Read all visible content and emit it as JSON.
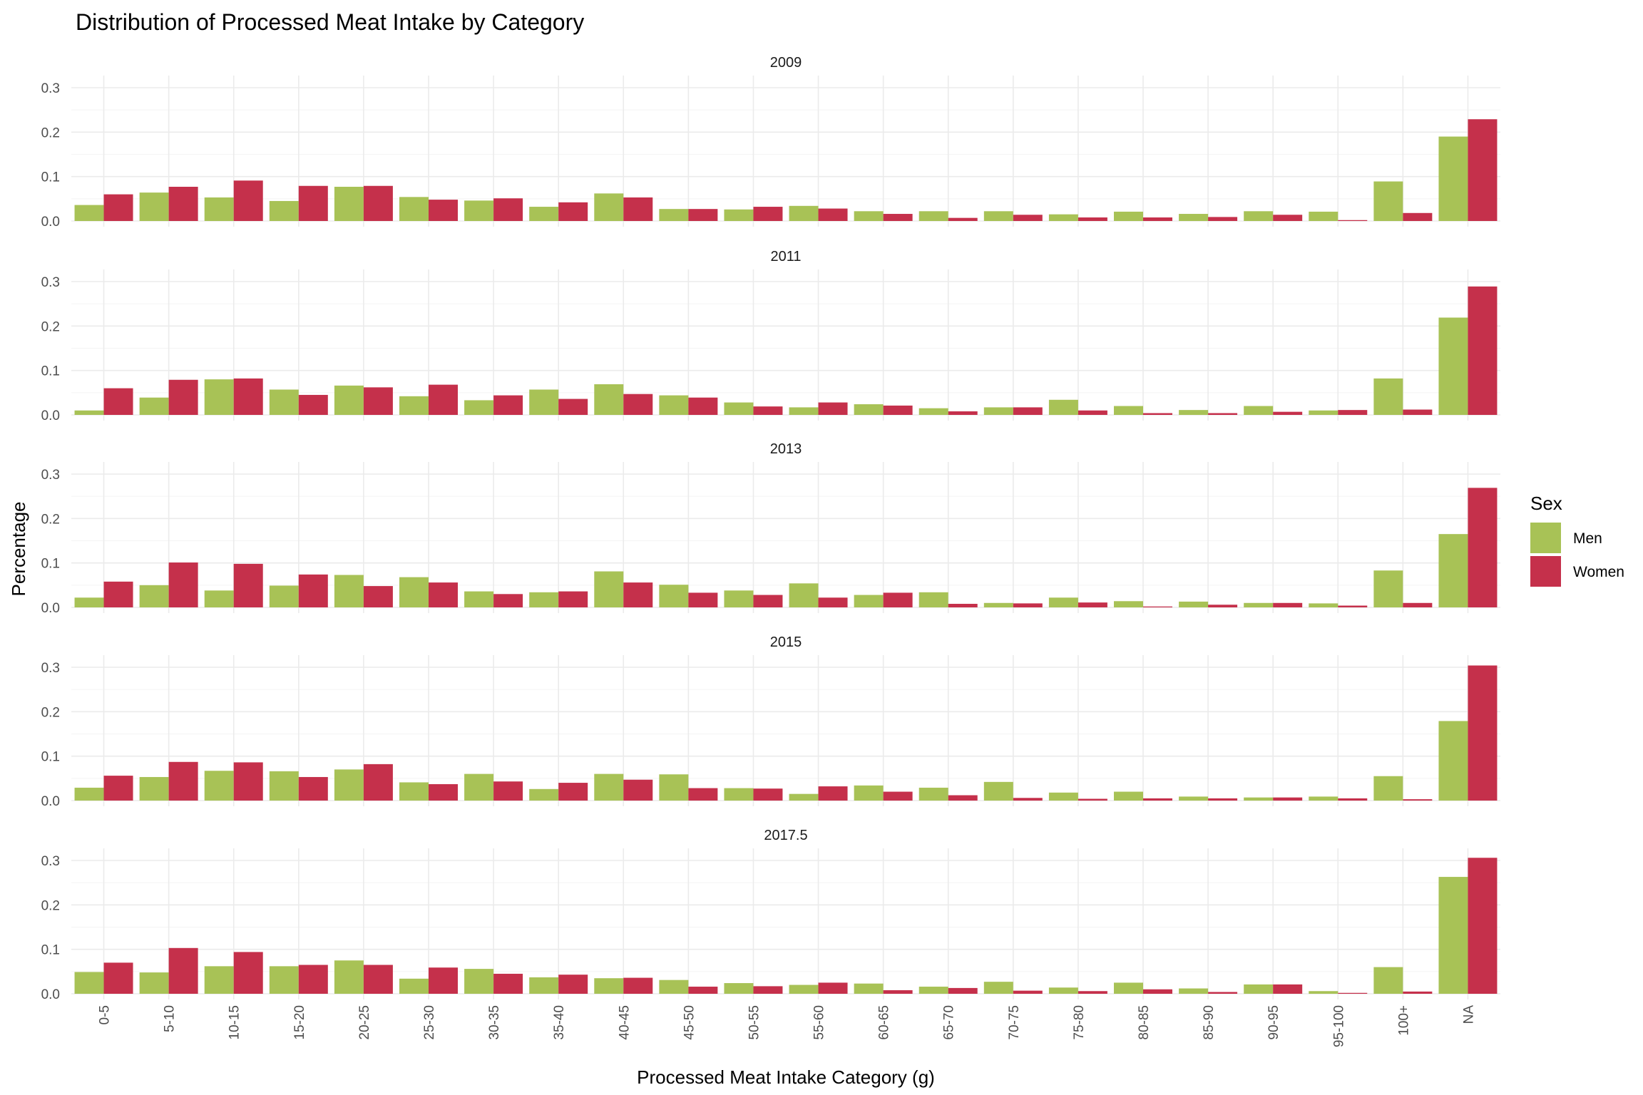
{
  "chart_data": {
    "type": "bar",
    "title": "Distribution of Processed Meat Intake by Category",
    "xlabel": "Processed Meat Intake Category (g)",
    "ylabel": "Percentage",
    "ylim": [
      0,
      0.3
    ],
    "yticks": [
      "0.0",
      "0.1",
      "0.2",
      "0.3"
    ],
    "grid": true,
    "legend": {
      "title": "Sex",
      "position": "right"
    },
    "categories": [
      "0-5",
      "5-10",
      "10-15",
      "15-20",
      "20-25",
      "25-30",
      "30-35",
      "35-40",
      "40-45",
      "45-50",
      "50-55",
      "55-60",
      "60-65",
      "65-70",
      "70-75",
      "75-80",
      "80-85",
      "85-90",
      "90-95",
      "95-100",
      "100+",
      "NA"
    ],
    "series": [
      {
        "name": "Men",
        "color": "#a8c256"
      },
      {
        "name": "Women",
        "color": "#c5304b"
      }
    ],
    "panels": [
      {
        "label": "2009",
        "Men": [
          0.036,
          0.064,
          0.053,
          0.045,
          0.077,
          0.054,
          0.046,
          0.032,
          0.062,
          0.027,
          0.026,
          0.034,
          0.022,
          0.022,
          0.022,
          0.015,
          0.021,
          0.016,
          0.022,
          0.021,
          0.089,
          0.19
        ],
        "Women": [
          0.06,
          0.077,
          0.091,
          0.079,
          0.079,
          0.048,
          0.051,
          0.042,
          0.053,
          0.027,
          0.032,
          0.028,
          0.016,
          0.007,
          0.014,
          0.008,
          0.008,
          0.009,
          0.014,
          0.002,
          0.018,
          0.229
        ]
      },
      {
        "label": "2011",
        "Men": [
          0.01,
          0.039,
          0.08,
          0.057,
          0.066,
          0.042,
          0.033,
          0.057,
          0.069,
          0.044,
          0.028,
          0.017,
          0.024,
          0.015,
          0.017,
          0.034,
          0.02,
          0.011,
          0.02,
          0.01,
          0.082,
          0.219
        ],
        "Women": [
          0.06,
          0.079,
          0.082,
          0.045,
          0.062,
          0.068,
          0.044,
          0.036,
          0.047,
          0.039,
          0.019,
          0.028,
          0.021,
          0.008,
          0.017,
          0.01,
          0.004,
          0.004,
          0.007,
          0.011,
          0.012,
          0.289
        ]
      },
      {
        "label": "2013",
        "Men": [
          0.022,
          0.05,
          0.038,
          0.049,
          0.073,
          0.068,
          0.036,
          0.034,
          0.081,
          0.051,
          0.038,
          0.054,
          0.028,
          0.034,
          0.01,
          0.022,
          0.014,
          0.013,
          0.01,
          0.009,
          0.083,
          0.165
        ],
        "Women": [
          0.058,
          0.101,
          0.098,
          0.074,
          0.048,
          0.056,
          0.03,
          0.036,
          0.056,
          0.033,
          0.028,
          0.022,
          0.033,
          0.008,
          0.009,
          0.011,
          0.002,
          0.006,
          0.01,
          0.004,
          0.01,
          0.269
        ]
      },
      {
        "label": "2015",
        "Men": [
          0.029,
          0.053,
          0.067,
          0.066,
          0.07,
          0.041,
          0.06,
          0.026,
          0.06,
          0.059,
          0.028,
          0.015,
          0.034,
          0.029,
          0.042,
          0.018,
          0.02,
          0.009,
          0.007,
          0.009,
          0.055,
          0.179
        ],
        "Women": [
          0.056,
          0.087,
          0.086,
          0.053,
          0.082,
          0.037,
          0.043,
          0.04,
          0.047,
          0.028,
          0.027,
          0.032,
          0.02,
          0.012,
          0.006,
          0.004,
          0.005,
          0.005,
          0.007,
          0.005,
          0.003,
          0.304
        ]
      },
      {
        "label": "2017.5",
        "Men": [
          0.049,
          0.048,
          0.062,
          0.062,
          0.075,
          0.034,
          0.056,
          0.037,
          0.035,
          0.031,
          0.024,
          0.02,
          0.023,
          0.016,
          0.027,
          0.014,
          0.025,
          0.012,
          0.021,
          0.006,
          0.06,
          0.263
        ],
        "Women": [
          0.07,
          0.103,
          0.094,
          0.065,
          0.065,
          0.059,
          0.045,
          0.043,
          0.036,
          0.016,
          0.017,
          0.025,
          0.008,
          0.013,
          0.007,
          0.006,
          0.01,
          0.004,
          0.021,
          0.002,
          0.005,
          0.306
        ]
      }
    ]
  }
}
